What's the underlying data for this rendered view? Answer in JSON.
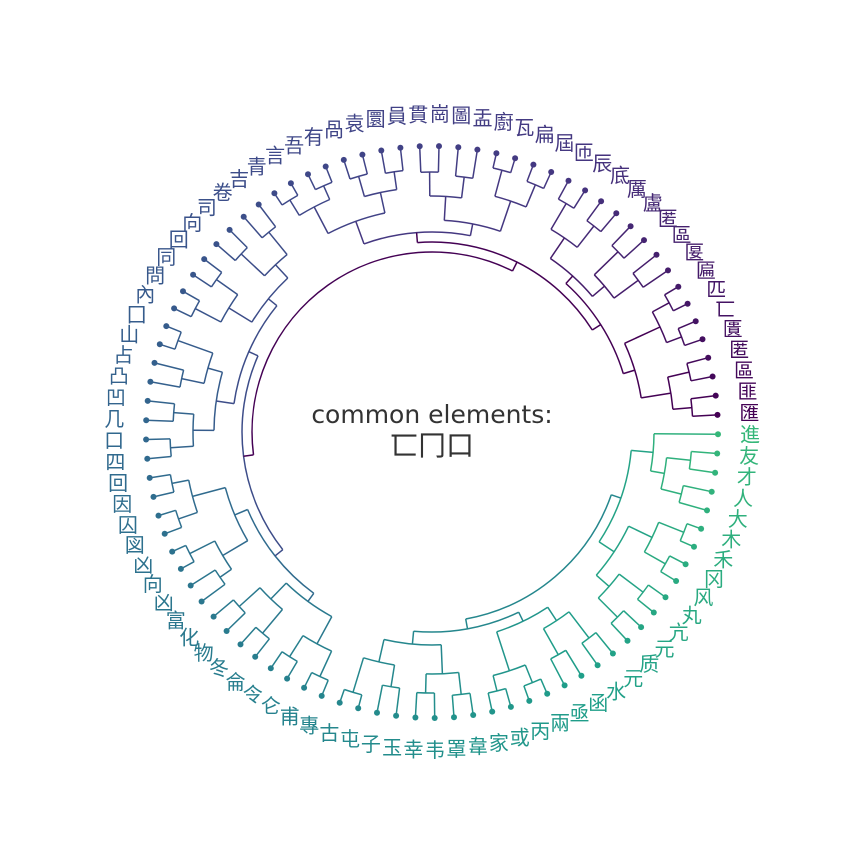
{
  "center": {
    "title": "common elements:",
    "glyphs": "匸冂口"
  },
  "colors": {
    "ramp": [
      "#440154",
      "#453781",
      "#3e4a89",
      "#31688e",
      "#26828e",
      "#1f9e89",
      "#35b779"
    ],
    "text": "#333333"
  },
  "chart_data": {
    "type": "dendrogram",
    "layout": "circular",
    "leaves": [
      "匯",
      "匪",
      "區",
      "匿",
      "匱",
      "匸",
      "匹",
      "匾",
      "匽",
      "區",
      "匿",
      "盧",
      "厲",
      "底",
      "辰",
      "匝",
      "屆",
      "扁",
      "瓦",
      "廚",
      "盂",
      "圖",
      "崗",
      "貫",
      "員",
      "圜",
      "袁",
      "咼",
      "有",
      "吾",
      "言",
      "青",
      "吉",
      "卷",
      "司",
      "向",
      "回",
      "同",
      "問",
      "內",
      "囗",
      "山",
      "占",
      "凸",
      "凹",
      "几",
      "口",
      "四",
      "回",
      "因",
      "囚",
      "図",
      "凶",
      "向",
      "凶",
      "富",
      "化",
      "物",
      "冬",
      "侖",
      "令",
      "仑",
      "甫",
      "專",
      "古",
      "屯",
      "子",
      "玉",
      "幸",
      "韦",
      "罩",
      "韋",
      "家",
      "或",
      "丙",
      "兩",
      "亟",
      "函",
      "水",
      "元",
      "质",
      "元",
      "亢",
      "丸",
      "风",
      "冈",
      "禾",
      "木",
      "大",
      "人",
      "才",
      "友",
      "進"
    ]
  }
}
